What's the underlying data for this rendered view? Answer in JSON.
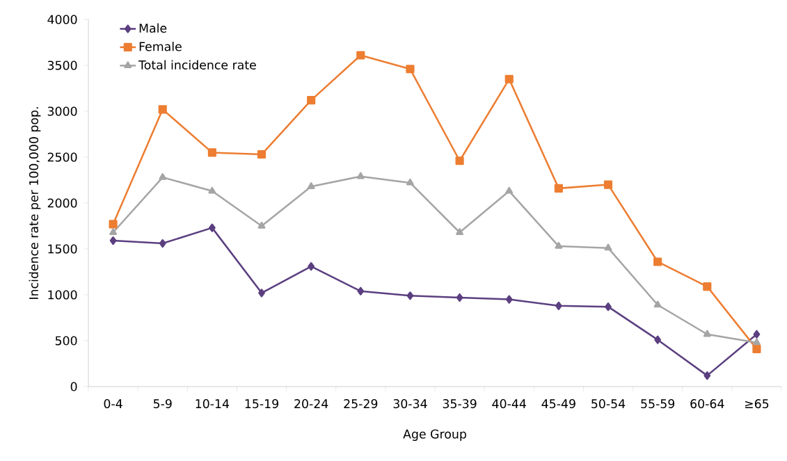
{
  "chart_data": {
    "type": "line",
    "xlabel": "Age Group",
    "ylabel": "Incidence rate per 100,000 pop.",
    "categories": [
      "0-4",
      "5-9",
      "10-14",
      "15-19",
      "20-24",
      "25-29",
      "30-34",
      "35-39",
      "40-44",
      "45-49",
      "50-54",
      "55-59",
      "60-64",
      "≥65"
    ],
    "series": [
      {
        "name": "Male",
        "color": "#5b3f80",
        "marker": "diamond",
        "values": [
          1590,
          1560,
          1730,
          1020,
          1310,
          1040,
          990,
          970,
          950,
          880,
          870,
          510,
          120,
          570
        ]
      },
      {
        "name": "Female",
        "color": "#ed7d31",
        "marker": "square",
        "values": [
          1770,
          3020,
          2550,
          2530,
          3120,
          3610,
          3460,
          2460,
          3350,
          2160,
          2200,
          1360,
          1090,
          410
        ]
      },
      {
        "name": "Total incidence rate",
        "color": "#a5a5a5",
        "marker": "triangle",
        "values": [
          1680,
          2280,
          2130,
          1750,
          2180,
          2290,
          2220,
          1680,
          2130,
          1530,
          1510,
          890,
          570,
          480
        ]
      }
    ],
    "ylim": [
      0,
      4000
    ],
    "yticks": [
      0,
      500,
      1000,
      1500,
      2000,
      2500,
      3000,
      3500,
      4000
    ],
    "grid": false,
    "legend": "top left",
    "line_style": "solid"
  }
}
